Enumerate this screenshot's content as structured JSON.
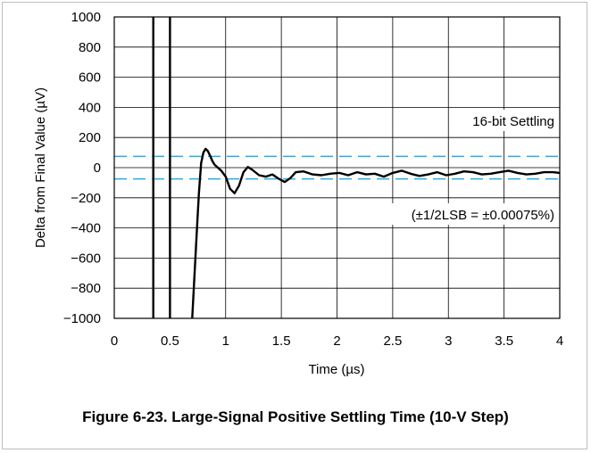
{
  "chart_data": {
    "type": "line",
    "xlabel": "Time (µs)",
    "ylabel": "Delta from Final Value (µV)",
    "xlim": [
      0,
      4
    ],
    "ylim": [
      -1000,
      1000
    ],
    "x_ticks": [
      "0",
      "0.5",
      "1",
      "1.5",
      "2",
      "2.5",
      "3",
      "3.5",
      "4"
    ],
    "y_ticks": [
      "1000",
      "800",
      "600",
      "400",
      "200",
      "0",
      "−200",
      "−400",
      "−600",
      "−800",
      "−1000"
    ],
    "grid": true,
    "series": [
      {
        "color": "#000000",
        "x": [
          0.35,
          0.35,
          0.35
        ],
        "y": [
          -1000,
          0,
          1000
        ],
        "segment": "left-vertical-transition"
      },
      {
        "color": "#000000",
        "x": [
          0.5,
          0.5,
          0.5
        ],
        "y": [
          -1000,
          0,
          1000
        ],
        "segment": "right-vertical-transition"
      },
      {
        "color": "#000000",
        "x": [
          0.7,
          0.72,
          0.74,
          0.76,
          0.78,
          0.8,
          0.82,
          0.84,
          0.86,
          0.88,
          0.9,
          0.93,
          0.96,
          1.0,
          1.04,
          1.08,
          1.12,
          1.16,
          1.2,
          1.24,
          1.3,
          1.36,
          1.42,
          1.48,
          1.53,
          1.58,
          1.63,
          1.7,
          1.78,
          1.86,
          1.94,
          2.02,
          2.1,
          2.18,
          2.26,
          2.34,
          2.42,
          2.5,
          2.58,
          2.66,
          2.74,
          2.82,
          2.9,
          2.98,
          3.06,
          3.14,
          3.22,
          3.3,
          3.38,
          3.46,
          3.54,
          3.62,
          3.7,
          3.78,
          3.86,
          3.94,
          4.0
        ],
        "y": [
          -1000,
          -720,
          -440,
          -170,
          30,
          100,
          125,
          110,
          80,
          45,
          20,
          0,
          -20,
          -60,
          -140,
          -170,
          -120,
          -30,
          5,
          -15,
          -50,
          -60,
          -45,
          -75,
          -95,
          -70,
          -30,
          -25,
          -45,
          -50,
          -40,
          -35,
          -50,
          -30,
          -45,
          -40,
          -60,
          -35,
          -20,
          -40,
          -55,
          -45,
          -30,
          -50,
          -40,
          -25,
          -30,
          -45,
          -40,
          -30,
          -20,
          -35,
          -45,
          -40,
          -30,
          -30,
          -35
        ]
      }
    ],
    "reference_lines": [
      {
        "y": 75,
        "color": "#29abe2",
        "style": "dashed"
      },
      {
        "y": -75,
        "color": "#29abe2",
        "style": "dashed"
      }
    ],
    "annotations": [
      {
        "text": "16-bit Settling"
      },
      {
        "text": "(±1/2LSB = ±0.00075%)"
      }
    ]
  },
  "caption": "Figure 6-23. Large-Signal Positive Settling Time (10-V Step)"
}
